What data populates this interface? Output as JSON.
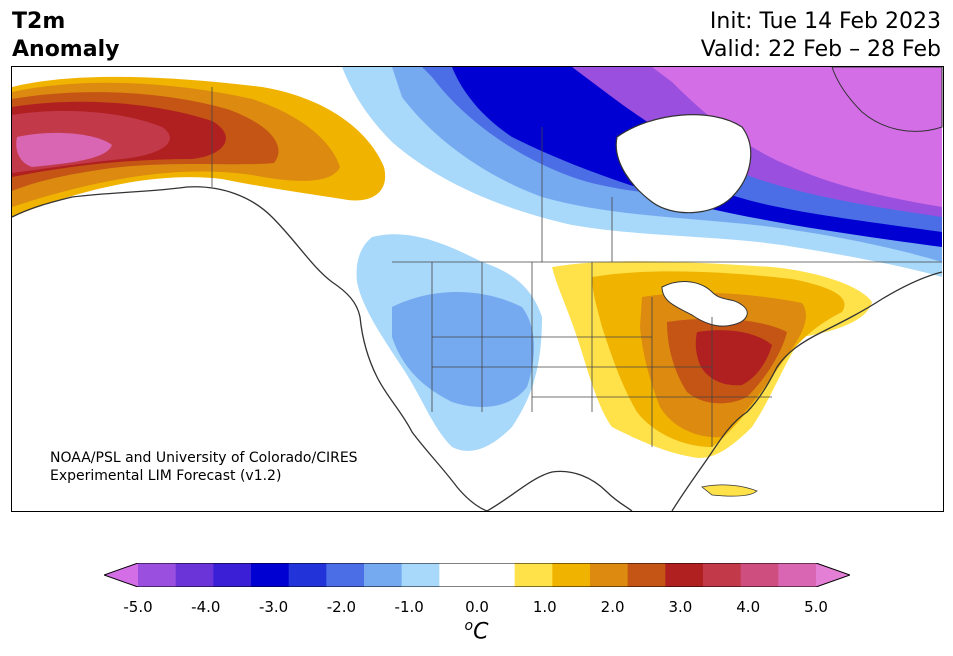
{
  "header": {
    "title_line1": "T2m",
    "title_line2": "Anomaly",
    "init": "Init: Tue 14 Feb 2023",
    "valid": "Valid: 22 Feb – 28 Feb"
  },
  "map": {
    "credit_line1": "NOAA/PSL and University of Colorado/CIRES",
    "credit_line2": "Experimental LIM Forecast (v1.2)"
  },
  "colorbar": {
    "ticks": [
      "-5.0",
      "-4.0",
      "-3.0",
      "-2.0",
      "-1.0",
      "0.0",
      "1.0",
      "2.0",
      "3.0",
      "4.0",
      "5.0"
    ],
    "units_base": "C",
    "units_sup": "o",
    "colors": [
      "#d36ee6",
      "#9b4fdf",
      "#6a34d9",
      "#3a1fd6",
      "#0000d2",
      "#2233da",
      "#4b6ee6",
      "#76aaf0",
      "#a8d8fa",
      "#ffffff",
      "#ffffff",
      "#ffe14a",
      "#f0b400",
      "#dc8a10",
      "#c45514",
      "#b02020",
      "#c23a4a",
      "#cf4e80",
      "#d866b2",
      "#e47fd6"
    ]
  }
}
